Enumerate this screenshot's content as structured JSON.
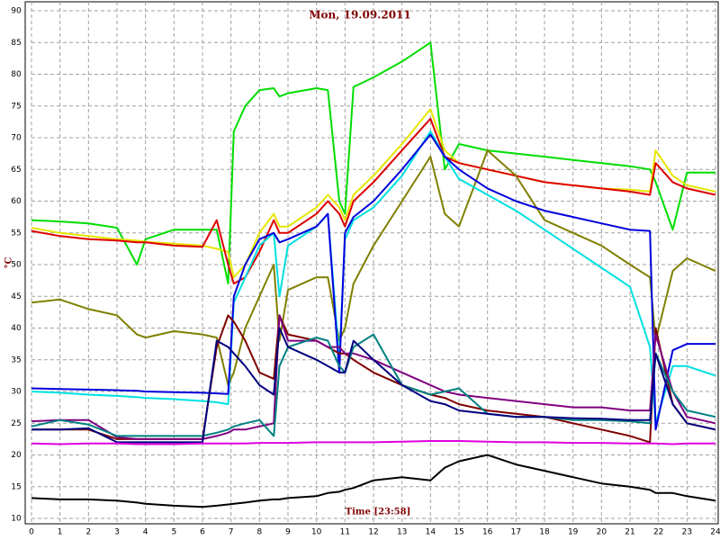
{
  "chart_data": {
    "type": "line",
    "title": "Mon, 19.09.2011",
    "x_label": "Time [23:58]",
    "y_label": "°C",
    "xlim": [
      0,
      24
    ],
    "ylim": [
      10,
      90
    ],
    "xticks": [
      0,
      1,
      2,
      3,
      4,
      5,
      6,
      7,
      8,
      9,
      10,
      11,
      12,
      13,
      14,
      15,
      16,
      17,
      18,
      19,
      20,
      21,
      22,
      23,
      24
    ],
    "yticks": [
      10,
      15,
      20,
      25,
      30,
      35,
      40,
      45,
      50,
      55,
      60,
      65,
      70,
      75,
      80,
      85,
      90
    ],
    "grid": true,
    "x": [
      0,
      1,
      2,
      3,
      3.7,
      4,
      5,
      6,
      6.5,
      6.9,
      7.1,
      7.5,
      8,
      8.5,
      8.7,
      9,
      10,
      10.4,
      10.8,
      11,
      11.3,
      12,
      13,
      14,
      14.5,
      15,
      16,
      17,
      18,
      19,
      20,
      21,
      21.7,
      21.9,
      22.5,
      23,
      24
    ],
    "series": [
      {
        "color": "#00dd00",
        "values": [
          57,
          56.8,
          56.5,
          55.8,
          50,
          54,
          55.5,
          55.5,
          55.5,
          47,
          71,
          75,
          77.5,
          77.8,
          76.5,
          77,
          77.8,
          77.5,
          60,
          58,
          78,
          79.5,
          82,
          85,
          65,
          69,
          68,
          67.5,
          67,
          66.5,
          66,
          65.5,
          65,
          63,
          55.5,
          64.5,
          64.5
        ]
      },
      {
        "color": "#e6e600",
        "values": [
          55.8,
          55,
          54.5,
          54,
          53.8,
          53.6,
          53.3,
          53,
          52.5,
          52,
          48,
          50,
          55,
          58,
          56,
          56,
          59,
          61,
          59,
          57,
          61,
          64,
          69,
          74.5,
          68,
          66,
          65,
          64,
          63,
          62.5,
          62,
          61.8,
          61.5,
          68,
          64,
          62.5,
          61.5
        ]
      },
      {
        "color": "#dd0000",
        "values": [
          55.3,
          54.5,
          54,
          53.8,
          53.5,
          53.5,
          53,
          52.8,
          57,
          50,
          47,
          48,
          52,
          57,
          55,
          55,
          58,
          60,
          58,
          56,
          60,
          63,
          68,
          73,
          67,
          66,
          65,
          64,
          63,
          62.5,
          62,
          61.5,
          61,
          66,
          63,
          62,
          61
        ]
      },
      {
        "color": "#808000",
        "values": [
          44,
          44.5,
          43,
          42,
          39,
          38.5,
          39.5,
          39,
          38.5,
          31,
          33,
          40,
          45,
          50,
          38,
          46,
          48,
          48,
          38,
          40,
          47,
          53,
          60,
          67,
          58,
          56,
          68,
          64,
          57,
          55,
          53,
          50,
          48,
          38,
          49,
          51,
          49
        ]
      },
      {
        "color": "#00e0e0",
        "values": [
          30,
          29.8,
          29.5,
          29.3,
          29.1,
          29,
          28.8,
          28.5,
          28.3,
          28,
          44,
          48,
          53,
          55,
          45,
          53,
          56,
          58,
          35,
          54,
          57,
          59,
          64,
          71,
          67,
          63.5,
          61,
          58.5,
          55.5,
          52.5,
          49.5,
          46.5,
          37,
          25,
          34,
          34,
          32.5
        ]
      },
      {
        "color": "#0000dd",
        "values": [
          30.5,
          30.4,
          30.3,
          30.2,
          30.1,
          30,
          29.9,
          29.8,
          29.7,
          29.6,
          45,
          50,
          54,
          55,
          53.5,
          54,
          56,
          58,
          33,
          55,
          57.5,
          60,
          65,
          70.5,
          67,
          65,
          62,
          60,
          58.5,
          57.5,
          56.5,
          55.5,
          55.3,
          24,
          36.5,
          37.5,
          37.5
        ]
      },
      {
        "color": "#800000",
        "values": [
          24,
          24,
          24,
          22.5,
          22.5,
          22.5,
          22.5,
          22.5,
          37,
          42,
          41,
          38,
          33,
          32,
          42,
          39,
          38,
          37,
          36,
          36,
          35,
          33,
          31,
          29.5,
          29,
          28,
          27,
          26.5,
          26,
          25,
          24,
          23,
          22,
          40,
          28,
          25,
          24
        ]
      },
      {
        "color": "#800080",
        "values": [
          25.3,
          25.5,
          25.5,
          22.8,
          22.5,
          22.5,
          22.5,
          22.5,
          23,
          23.5,
          24,
          24,
          24.5,
          25,
          42,
          38,
          38,
          37,
          37,
          36,
          36,
          35,
          33,
          31,
          30,
          29.5,
          29,
          28.5,
          28,
          27.5,
          27.5,
          27,
          27,
          39,
          30,
          26,
          25
        ]
      },
      {
        "color": "#008080",
        "values": [
          24.5,
          25.5,
          24.8,
          23,
          23,
          23,
          23,
          23,
          23.5,
          24,
          24.5,
          25,
          25.5,
          23,
          34,
          37,
          38.5,
          38,
          34,
          33,
          37,
          39,
          31,
          29.5,
          30,
          30.5,
          26.5,
          26,
          26,
          25.5,
          25.5,
          25.3,
          25,
          36,
          30,
          27,
          26
        ]
      },
      {
        "color": "#000080",
        "values": [
          24,
          24,
          24.2,
          22,
          22,
          22,
          22,
          22,
          38,
          37,
          36,
          34,
          31,
          29.5,
          40,
          37,
          35,
          34,
          33,
          33,
          38,
          35,
          31,
          28.5,
          28,
          27,
          26.5,
          26,
          26,
          25.8,
          25.7,
          25.5,
          25.5,
          36,
          28,
          25,
          24
        ]
      },
      {
        "color": "#e000e0",
        "values": [
          21.8,
          21.7,
          21.8,
          21.8,
          21.7,
          21.7,
          21.7,
          21.8,
          21.8,
          21.8,
          21.8,
          21.8,
          21.9,
          21.9,
          21.9,
          21.9,
          22,
          22,
          22,
          22,
          22,
          22,
          22.1,
          22.2,
          22.2,
          22.2,
          22.1,
          22,
          22,
          21.9,
          21.9,
          21.8,
          21.8,
          21.8,
          21.7,
          21.8,
          21.8
        ]
      },
      {
        "color": "#000000",
        "values": [
          13.2,
          13,
          13,
          12.8,
          12.5,
          12.3,
          12,
          11.8,
          12,
          12.2,
          12.3,
          12.5,
          12.8,
          13,
          13,
          13.2,
          13.5,
          14,
          14.2,
          14.5,
          14.8,
          16,
          16.5,
          16,
          18,
          19,
          20,
          18.5,
          17.5,
          16.5,
          15.5,
          15,
          14.5,
          14,
          14,
          13.5,
          12.8
        ]
      }
    ]
  }
}
